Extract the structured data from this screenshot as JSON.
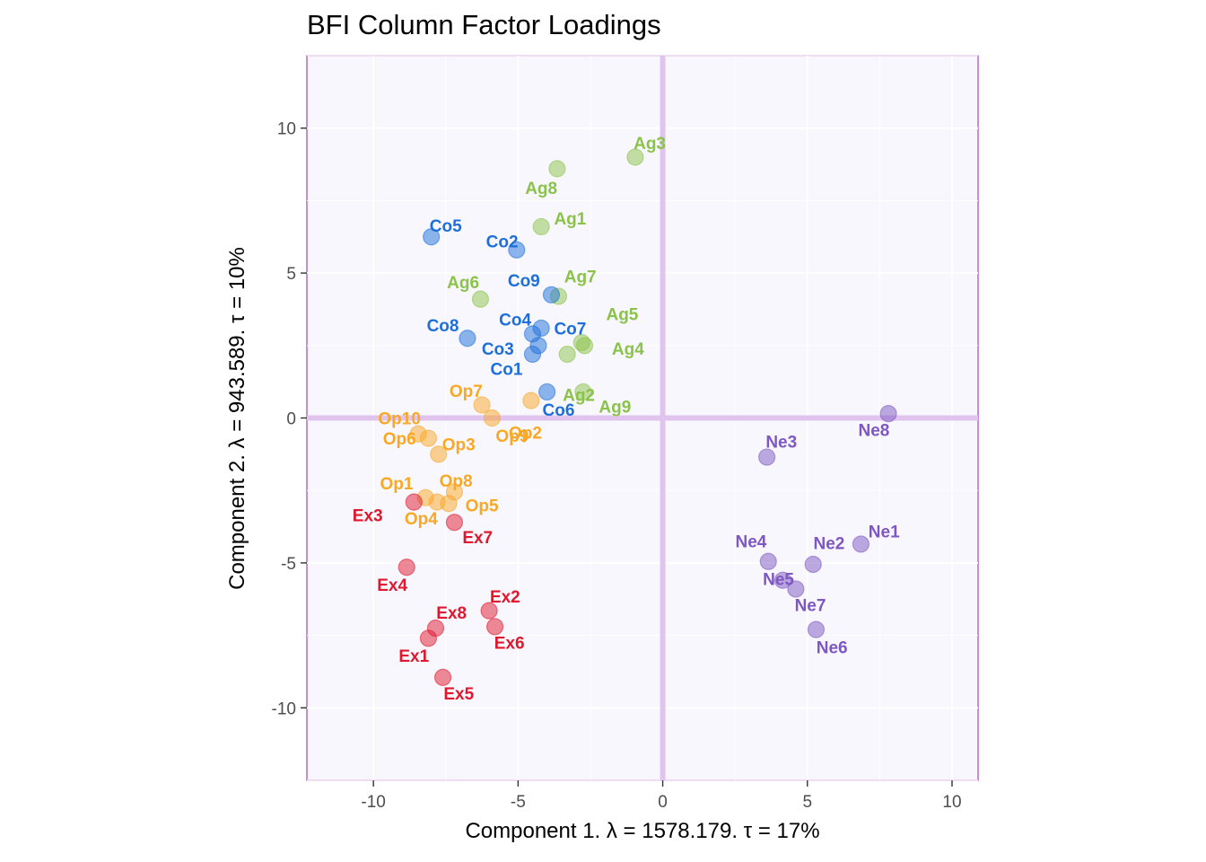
{
  "chart_data": {
    "type": "scatter",
    "title": "BFI Column Factor Loadings",
    "xlabel": "Component 1.   λ = 1578.179.  τ = 17%",
    "ylabel": "Component 2.   λ = 943.589.  τ = 10%",
    "xlim": [
      -12.3,
      10.9
    ],
    "ylim": [
      -12.5,
      12.5
    ],
    "x_ticks": [
      -10,
      -5,
      0,
      5,
      10
    ],
    "y_ticks": [
      -10,
      -5,
      0,
      5,
      10
    ],
    "x_tick_labels": [
      "-10",
      "-5",
      "0",
      "5",
      "10"
    ],
    "y_tick_labels": [
      "-10",
      "-5",
      "0",
      "5",
      "10"
    ],
    "grid": true,
    "legend": "none",
    "colors": {
      "Ag": "#8BC34A",
      "Co": "#1E6FD9",
      "Op": "#F9A825",
      "Ex": "#E0182D",
      "Ne": "#7E57C2",
      "panel_bg": "#F8F7FD",
      "panel_border": "#B05CC8",
      "origin_lines": "#E0C4EE"
    },
    "points": [
      {
        "label": "Ag1",
        "group": "Ag",
        "x": -4.2,
        "y": 6.6
      },
      {
        "label": "Ag2",
        "group": "Ag",
        "x": -3.3,
        "y": 2.2
      },
      {
        "label": "Ag3",
        "group": "Ag",
        "x": -0.95,
        "y": 9.0
      },
      {
        "label": "Ag4",
        "group": "Ag",
        "x": -2.7,
        "y": 2.5
      },
      {
        "label": "Ag5",
        "group": "Ag",
        "x": -2.8,
        "y": 2.6
      },
      {
        "label": "Ag6",
        "group": "Ag",
        "x": -6.3,
        "y": 4.1
      },
      {
        "label": "Ag7",
        "group": "Ag",
        "x": -3.6,
        "y": 4.2
      },
      {
        "label": "Ag8",
        "group": "Ag",
        "x": -3.65,
        "y": 8.6
      },
      {
        "label": "Ag9",
        "group": "Ag",
        "x": -2.75,
        "y": 0.9
      },
      {
        "label": "Co1",
        "group": "Co",
        "x": -4.5,
        "y": 2.2
      },
      {
        "label": "Co2",
        "group": "Co",
        "x": -5.05,
        "y": 5.8
      },
      {
        "label": "Co3",
        "group": "Co",
        "x": -4.3,
        "y": 2.5
      },
      {
        "label": "Co4",
        "group": "Co",
        "x": -4.5,
        "y": 2.9
      },
      {
        "label": "Co5",
        "group": "Co",
        "x": -8.0,
        "y": 6.25
      },
      {
        "label": "Co6",
        "group": "Co",
        "x": -4.0,
        "y": 0.9
      },
      {
        "label": "Co7",
        "group": "Co",
        "x": -4.2,
        "y": 3.1
      },
      {
        "label": "Co8",
        "group": "Co",
        "x": -6.75,
        "y": 2.75
      },
      {
        "label": "Co9",
        "group": "Co",
        "x": -3.85,
        "y": 4.25
      },
      {
        "label": "Op1",
        "group": "Op",
        "x": -8.2,
        "y": -2.75
      },
      {
        "label": "Op2",
        "group": "Op",
        "x": -4.55,
        "y": 0.6
      },
      {
        "label": "Op3",
        "group": "Op",
        "x": -7.75,
        "y": -1.25
      },
      {
        "label": "Op4",
        "group": "Op",
        "x": -7.8,
        "y": -2.9
      },
      {
        "label": "Op5",
        "group": "Op",
        "x": -7.4,
        "y": -2.95
      },
      {
        "label": "Op6",
        "group": "Op",
        "x": -8.1,
        "y": -0.7
      },
      {
        "label": "Op7",
        "group": "Op",
        "x": -6.25,
        "y": 0.45
      },
      {
        "label": "Op8",
        "group": "Op",
        "x": -7.2,
        "y": -2.55
      },
      {
        "label": "Op9",
        "group": "Op",
        "x": -5.9,
        "y": 0.0
      },
      {
        "label": "Op10",
        "group": "Op",
        "x": -8.45,
        "y": -0.55
      },
      {
        "label": "Ex1",
        "group": "Ex",
        "x": -8.1,
        "y": -7.6
      },
      {
        "label": "Ex2",
        "group": "Ex",
        "x": -6.0,
        "y": -6.65
      },
      {
        "label": "Ex3",
        "group": "Ex",
        "x": -8.6,
        "y": -2.9
      },
      {
        "label": "Ex4",
        "group": "Ex",
        "x": -8.85,
        "y": -5.15
      },
      {
        "label": "Ex5",
        "group": "Ex",
        "x": -7.6,
        "y": -8.95
      },
      {
        "label": "Ex6",
        "group": "Ex",
        "x": -5.8,
        "y": -7.2
      },
      {
        "label": "Ex7",
        "group": "Ex",
        "x": -7.2,
        "y": -3.6
      },
      {
        "label": "Ex8",
        "group": "Ex",
        "x": -7.85,
        "y": -7.25
      },
      {
        "label": "Ne1",
        "group": "Ne",
        "x": 6.85,
        "y": -4.35
      },
      {
        "label": "Ne2",
        "group": "Ne",
        "x": 5.2,
        "y": -5.05
      },
      {
        "label": "Ne3",
        "group": "Ne",
        "x": 3.6,
        "y": -1.35
      },
      {
        "label": "Ne4",
        "group": "Ne",
        "x": 3.65,
        "y": -4.95
      },
      {
        "label": "Ne5",
        "group": "Ne",
        "x": 4.15,
        "y": -5.6
      },
      {
        "label": "Ne6",
        "group": "Ne",
        "x": 5.3,
        "y": -7.3
      },
      {
        "label": "Ne7",
        "group": "Ne",
        "x": 4.6,
        "y": -5.9
      },
      {
        "label": "Ne8",
        "group": "Ne",
        "x": 7.8,
        "y": 0.15
      }
    ],
    "label_offsets": {
      "Ag1": [
        1.0,
        0.3
      ],
      "Ag2": [
        0.4,
        -1.4
      ],
      "Ag3": [
        0.5,
        0.5
      ],
      "Ag4": [
        1.5,
        -0.1
      ],
      "Ag5": [
        1.4,
        1.0
      ],
      "Ag6": [
        -0.6,
        0.6
      ],
      "Ag7": [
        0.75,
        0.7
      ],
      "Ag8": [
        -0.55,
        -0.65
      ],
      "Ag9": [
        1.1,
        -0.5
      ],
      "Co1": [
        -0.9,
        -0.5
      ],
      "Co2": [
        -0.5,
        0.3
      ],
      "Co3": [
        -1.4,
        -0.1
      ],
      "Co4": [
        -0.6,
        0.5
      ],
      "Co5": [
        0.5,
        0.4
      ],
      "Co6": [
        0.4,
        -0.6
      ],
      "Co7": [
        1.0,
        0.0
      ],
      "Co8": [
        -0.85,
        0.45
      ],
      "Co9": [
        -0.95,
        0.5
      ],
      "Op1": [
        -1.0,
        0.5
      ],
      "Op2": [
        -0.2,
        -1.1
      ],
      "Op3": [
        0.7,
        0.35
      ],
      "Op4": [
        -0.55,
        -0.55
      ],
      "Op5": [
        1.15,
        -0.05
      ],
      "Op6": [
        -1.0,
        0.0
      ],
      "Op7": [
        -0.55,
        0.5
      ],
      "Op8": [
        0.05,
        0.4
      ],
      "Op9": [
        0.7,
        -0.6
      ],
      "Op10": [
        -0.65,
        0.55
      ],
      "Ex1": [
        -0.5,
        -0.6
      ],
      "Ex2": [
        0.55,
        0.5
      ],
      "Ex3": [
        -1.6,
        -0.45
      ],
      "Ex4": [
        -0.5,
        -0.6
      ],
      "Ex5": [
        0.55,
        -0.55
      ],
      "Ex6": [
        0.5,
        -0.55
      ],
      "Ex7": [
        0.8,
        -0.5
      ],
      "Ex8": [
        0.55,
        0.55
      ],
      "Ne1": [
        0.8,
        0.45
      ],
      "Ne2": [
        0.55,
        0.75
      ],
      "Ne3": [
        0.5,
        0.55
      ],
      "Ne4": [
        -0.6,
        0.7
      ],
      "Ne5": [
        -0.15,
        0.05
      ],
      "Ne6": [
        0.55,
        -0.6
      ],
      "Ne7": [
        0.5,
        -0.55
      ],
      "Ne8": [
        -0.5,
        -0.55
      ]
    }
  }
}
